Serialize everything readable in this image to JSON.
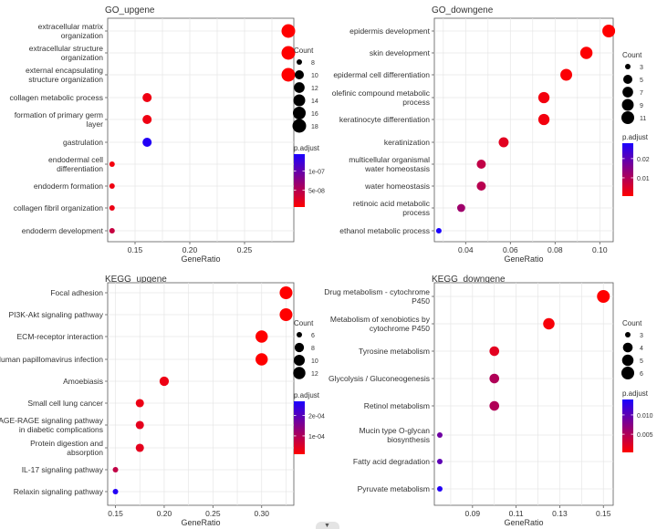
{
  "chart_data": [
    {
      "id": "go-up",
      "type": "scatter",
      "title": "GO_upgene",
      "xlabel": "GeneRatio",
      "xlim": [
        0.125,
        0.295
      ],
      "xticks": [
        0.15,
        0.2,
        0.25
      ],
      "xtick_labels": [
        "0.15",
        "0.20",
        "0.25"
      ],
      "terms": [
        {
          "label": "extracellular matrix organization",
          "lines": [
            "extracellular matrix",
            "organization"
          ],
          "ratio": 0.29,
          "count": 18,
          "padj": 5e-09
        },
        {
          "label": "extracellular structure organization",
          "lines": [
            "extracellular structure",
            "organization"
          ],
          "ratio": 0.29,
          "count": 18,
          "padj": 5e-09
        },
        {
          "label": "external encapsulating structure organization",
          "lines": [
            "external encapsulating",
            "structure organization"
          ],
          "ratio": 0.29,
          "count": 18,
          "padj": 5e-09
        },
        {
          "label": "collagen metabolic process",
          "lines": [
            "collagen metabolic process"
          ],
          "ratio": 0.161,
          "count": 10,
          "padj": 1.5e-08
        },
        {
          "label": "formation of primary germ layer",
          "lines": [
            "formation of primary germ",
            "layer"
          ],
          "ratio": 0.161,
          "count": 10,
          "padj": 1.5e-08
        },
        {
          "label": "gastrulation",
          "lines": [
            "gastrulation"
          ],
          "ratio": 0.161,
          "count": 10,
          "padj": 1.4e-07
        },
        {
          "label": "endodermal cell differentiation",
          "lines": [
            "endodermal cell",
            "differentiation"
          ],
          "ratio": 0.129,
          "count": 8,
          "padj": 1.2e-08
        },
        {
          "label": "endoderm formation",
          "lines": [
            "endoderm formation"
          ],
          "ratio": 0.129,
          "count": 8,
          "padj": 1.4e-08
        },
        {
          "label": "collagen fibril organization",
          "lines": [
            "collagen fibril organization"
          ],
          "ratio": 0.129,
          "count": 8,
          "padj": 1.6e-08
        },
        {
          "label": "endoderm development",
          "lines": [
            "endoderm development"
          ],
          "ratio": 0.129,
          "count": 8,
          "padj": 4e-08
        }
      ],
      "size_legend": {
        "title": "Count",
        "values": [
          8,
          10,
          12,
          14,
          16,
          18
        ],
        "labels": [
          "8",
          "10",
          "12",
          "14",
          "16",
          "18"
        ]
      },
      "color_legend": {
        "title": "p.adjust",
        "min": 5e-09,
        "max": 1.45e-07,
        "ticks": [
          1e-07,
          5e-08
        ],
        "tick_labels": [
          "1e-07",
          "5e-08"
        ]
      },
      "size_domain": [
        8,
        18
      ],
      "radius_range": [
        3,
        7.5
      ]
    },
    {
      "id": "go-down",
      "type": "scatter",
      "title": "GO_downgene",
      "xlabel": "GeneRatio",
      "xlim": [
        0.026,
        0.106
      ],
      "xticks": [
        0.04,
        0.06,
        0.08,
        0.1
      ],
      "xtick_labels": [
        "0.04",
        "0.06",
        "0.08",
        "0.10"
      ],
      "terms": [
        {
          "label": "epidermis development",
          "lines": [
            "epidermis development"
          ],
          "ratio": 0.104,
          "count": 11,
          "padj": 0.0005
        },
        {
          "label": "skin development",
          "lines": [
            "skin development"
          ],
          "ratio": 0.094,
          "count": 10,
          "padj": 0.0008
        },
        {
          "label": "epidermal cell differentiation",
          "lines": [
            "epidermal cell differentiation"
          ],
          "ratio": 0.085,
          "count": 9,
          "padj": 0.001
        },
        {
          "label": "olefinic compound metabolic process",
          "lines": [
            "olefinic compound metabolic",
            "process"
          ],
          "ratio": 0.075,
          "count": 8,
          "padj": 0.002
        },
        {
          "label": "keratinocyte differentiation",
          "lines": [
            "keratinocyte differentiation"
          ],
          "ratio": 0.075,
          "count": 8,
          "padj": 0.002
        },
        {
          "label": "keratinization",
          "lines": [
            "keratinization"
          ],
          "ratio": 0.057,
          "count": 6,
          "padj": 0.004
        },
        {
          "label": "multicellular organismal water homeostasis",
          "lines": [
            "multicellular organismal",
            "water homeostasis"
          ],
          "ratio": 0.047,
          "count": 5,
          "padj": 0.008
        },
        {
          "label": "water homeostasis",
          "lines": [
            "water homeostasis"
          ],
          "ratio": 0.047,
          "count": 5,
          "padj": 0.009
        },
        {
          "label": "retinoic acid metabolic process",
          "lines": [
            "retinoic acid metabolic",
            "process"
          ],
          "ratio": 0.038,
          "count": 4,
          "padj": 0.012
        },
        {
          "label": "ethanol metabolic process",
          "lines": [
            "ethanol metabolic process"
          ],
          "ratio": 0.028,
          "count": 3,
          "padj": 0.028
        }
      ],
      "size_legend": {
        "title": "Count",
        "values": [
          3,
          5,
          7,
          9,
          11
        ],
        "labels": [
          "3",
          "5",
          "7",
          "9",
          "11"
        ]
      },
      "color_legend": {
        "title": "p.adjust",
        "min": 0.0005,
        "max": 0.028,
        "ticks": [
          0.02,
          0.01
        ],
        "tick_labels": [
          "0.02",
          "0.01"
        ]
      },
      "size_domain": [
        3,
        11
      ],
      "radius_range": [
        3,
        7
      ]
    },
    {
      "id": "kegg-up",
      "type": "scatter",
      "title": "KEGG_upgene",
      "xlabel": "GeneRatio",
      "xlim": [
        0.142,
        0.333
      ],
      "xticks": [
        0.15,
        0.2,
        0.25,
        0.3
      ],
      "xtick_labels": [
        "0.15",
        "0.20",
        "0.25",
        "0.30"
      ],
      "terms": [
        {
          "label": "Focal adhesion",
          "lines": [
            "Focal adhesion"
          ],
          "ratio": 0.325,
          "count": 13,
          "padj": 1e-05
        },
        {
          "label": "PI3K-Akt signaling pathway",
          "lines": [
            "PI3K-Akt signaling pathway"
          ],
          "ratio": 0.325,
          "count": 13,
          "padj": 1e-05
        },
        {
          "label": "ECM-receptor interaction",
          "lines": [
            "ECM-receptor interaction"
          ],
          "ratio": 0.3,
          "count": 12,
          "padj": 1e-05
        },
        {
          "label": "Human papillomavirus infection",
          "lines": [
            "Human papillomavirus infection"
          ],
          "ratio": 0.3,
          "count": 12,
          "padj": 1e-05
        },
        {
          "label": "Amoebiasis",
          "lines": [
            "Amoebiasis"
          ],
          "ratio": 0.2,
          "count": 8,
          "padj": 3e-05
        },
        {
          "label": "Small cell lung cancer",
          "lines": [
            "Small cell lung cancer"
          ],
          "ratio": 0.175,
          "count": 7,
          "padj": 3e-05
        },
        {
          "label": "AGE-RAGE signaling pathway in diabetic complications",
          "lines": [
            "AGE-RAGE signaling pathway",
            "in diabetic complications"
          ],
          "ratio": 0.175,
          "count": 7,
          "padj": 4e-05
        },
        {
          "label": "Protein digestion and absorption",
          "lines": [
            "Protein digestion and",
            "absorption"
          ],
          "ratio": 0.175,
          "count": 7,
          "padj": 4e-05
        },
        {
          "label": "IL-17 signaling pathway",
          "lines": [
            "IL-17 signaling pathway"
          ],
          "ratio": 0.15,
          "count": 6,
          "padj": 8e-05
        },
        {
          "label": "Relaxin signaling pathway",
          "lines": [
            "Relaxin signaling pathway"
          ],
          "ratio": 0.15,
          "count": 6,
          "padj": 0.00026
        }
      ],
      "size_legend": {
        "title": "Count",
        "values": [
          6,
          8,
          10,
          12
        ],
        "labels": [
          "6",
          "8",
          "10",
          "12"
        ]
      },
      "color_legend": {
        "title": "p.adjust",
        "min": 1e-05,
        "max": 0.00027,
        "ticks": [
          0.0002,
          0.0001
        ],
        "tick_labels": [
          "2e-04",
          "1e-04"
        ]
      },
      "size_domain": [
        6,
        13
      ],
      "radius_range": [
        3,
        7
      ]
    },
    {
      "id": "kegg-down",
      "type": "scatter",
      "title": "KEGG_downgene",
      "xlabel": "GeneRatio",
      "xlim": [
        0.0725,
        0.1545
      ],
      "xticks": [
        0.09,
        0.11,
        0.13,
        0.15
      ],
      "xtick_labels": [
        "0.09",
        "0.11",
        "0.13",
        "0.15"
      ],
      "terms": [
        {
          "label": "Drug metabolism - cytochrome P450",
          "lines": [
            "Drug metabolism - cytochrome",
            "P450"
          ],
          "ratio": 0.15,
          "count": 6,
          "padj": 0.0003
        },
        {
          "label": "Metabolism of xenobiotics by cytochrome P450",
          "lines": [
            "Metabolism of xenobiotics by",
            "cytochrome P450"
          ],
          "ratio": 0.125,
          "count": 5,
          "padj": 0.0008
        },
        {
          "label": "Tyrosine metabolism",
          "lines": [
            "Tyrosine metabolism"
          ],
          "ratio": 0.1,
          "count": 4,
          "padj": 0.002
        },
        {
          "label": "Glycolysis / Gluconeogenesis",
          "lines": [
            "Glycolysis / Gluconeogenesis"
          ],
          "ratio": 0.1,
          "count": 4,
          "padj": 0.005
        },
        {
          "label": "Retinol metabolism",
          "lines": [
            "Retinol metabolism"
          ],
          "ratio": 0.1,
          "count": 4,
          "padj": 0.005
        },
        {
          "label": "Mucin type O-glycan biosynthesis",
          "lines": [
            "Mucin type O-glycan",
            "biosynthesis"
          ],
          "ratio": 0.075,
          "count": 3,
          "padj": 0.009
        },
        {
          "label": "Fatty acid degradation",
          "lines": [
            "Fatty acid degradation"
          ],
          "ratio": 0.075,
          "count": 3,
          "padj": 0.01
        },
        {
          "label": "Pyruvate metabolism",
          "lines": [
            "Pyruvate metabolism"
          ],
          "ratio": 0.075,
          "count": 3,
          "padj": 0.0135
        }
      ],
      "size_legend": {
        "title": "Count",
        "values": [
          3,
          4,
          5,
          6
        ],
        "labels": [
          "3",
          "4",
          "5",
          "6"
        ]
      },
      "color_legend": {
        "title": "p.adjust",
        "min": 0.0003,
        "max": 0.014,
        "ticks": [
          0.01,
          0.005
        ],
        "tick_labels": [
          "0.010",
          "0.005"
        ]
      },
      "size_domain": [
        3,
        6
      ],
      "radius_range": [
        3,
        7
      ]
    }
  ],
  "colors": {
    "low": "#ff0000",
    "high": "#1a00ff",
    "panel": "#ffffff",
    "grid": "#e6e6e6",
    "text": "#333333",
    "axis": "#5a5a5a"
  },
  "scroll_hint_icon": "chevron-down-icon"
}
